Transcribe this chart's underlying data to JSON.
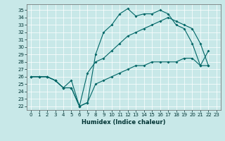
{
  "title": "",
  "xlabel": "Humidex (Indice chaleur)",
  "background_color": "#c8e8e8",
  "grid_color": "#ffffff",
  "line_color": "#006666",
  "xlim": [
    -0.5,
    23.5
  ],
  "ylim": [
    21.5,
    35.8
  ],
  "xticks": [
    0,
    1,
    2,
    3,
    4,
    5,
    6,
    7,
    8,
    9,
    10,
    11,
    12,
    13,
    14,
    15,
    16,
    17,
    18,
    19,
    20,
    21,
    22,
    23
  ],
  "yticks": [
    22,
    23,
    24,
    25,
    26,
    27,
    28,
    29,
    30,
    31,
    32,
    33,
    34,
    35
  ],
  "line1_x": [
    0,
    1,
    2,
    3,
    4,
    5,
    6,
    7,
    8,
    9,
    10,
    11,
    12,
    13,
    14,
    15,
    16,
    17,
    18,
    19,
    20,
    21,
    22
  ],
  "line1_y": [
    26,
    26,
    26,
    25.5,
    24.5,
    24.5,
    22.0,
    22.5,
    29.0,
    32.0,
    33.0,
    34.5,
    35.2,
    34.2,
    34.5,
    34.5,
    35.0,
    34.5,
    33.0,
    32.5,
    30.5,
    27.5,
    29.5
  ],
  "line2_x": [
    0,
    1,
    2,
    3,
    4,
    5,
    6,
    7,
    8,
    9,
    10,
    11,
    12,
    13,
    14,
    15,
    16,
    17,
    18,
    19,
    20,
    21,
    22
  ],
  "line2_y": [
    26,
    26,
    26,
    25.5,
    24.5,
    24.5,
    22.0,
    26.5,
    28.0,
    28.5,
    29.5,
    30.5,
    31.5,
    32.0,
    32.5,
    33.0,
    33.5,
    34.0,
    33.5,
    33.0,
    32.5,
    30.5,
    27.5
  ],
  "line3_x": [
    0,
    1,
    2,
    3,
    4,
    5,
    6,
    7,
    8,
    9,
    10,
    11,
    12,
    13,
    14,
    15,
    16,
    17,
    18,
    19,
    20,
    21,
    22
  ],
  "line3_y": [
    26,
    26,
    26,
    25.5,
    24.5,
    25.5,
    22.0,
    22.5,
    25.0,
    25.5,
    26.0,
    26.5,
    27.0,
    27.5,
    27.5,
    28.0,
    28.0,
    28.0,
    28.0,
    28.5,
    28.5,
    27.5,
    27.5
  ],
  "xlabel_fontsize": 6,
  "tick_fontsize": 5
}
